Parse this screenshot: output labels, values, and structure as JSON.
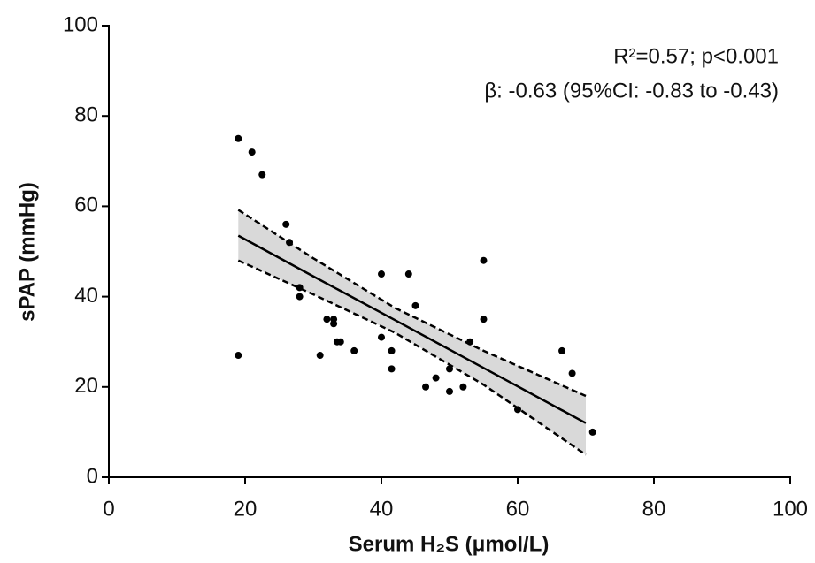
{
  "chart_data": {
    "type": "scatter",
    "x_label": "Serum H₂S (μmol/L)",
    "y_label": "sPAP (mmHg)",
    "annotations": [
      "R²=0.57; p<0.001",
      "β: -0.63 (95%CI: -0.83 to -0.43)"
    ],
    "xlim": [
      0,
      100
    ],
    "ylim": [
      0,
      100
    ],
    "xticks": [
      0,
      20,
      40,
      60,
      80,
      100
    ],
    "yticks": [
      0,
      20,
      40,
      60,
      80,
      100
    ],
    "points": {
      "color": "#000000",
      "x": [
        19,
        21,
        22.5,
        26,
        26.5,
        28,
        28,
        19,
        31,
        32,
        33,
        33,
        33.5,
        34,
        36,
        40,
        40,
        41.5,
        41.5,
        44,
        45,
        46.5,
        48,
        50,
        50,
        52,
        53,
        55,
        55,
        60,
        66.5,
        68,
        71
      ],
      "y": [
        75,
        72,
        67,
        56,
        52,
        42,
        40,
        27,
        27,
        35,
        35,
        34,
        30,
        30,
        28,
        45,
        31,
        28,
        24,
        45,
        38,
        20,
        22,
        24,
        19,
        20,
        30,
        48,
        35,
        15,
        28,
        23,
        10
      ]
    },
    "fit": {
      "color": "#000000",
      "band_color": "#d9d9d9",
      "x": [
        19,
        30,
        42,
        55,
        70
      ],
      "values": [
        53.5,
        44.5,
        34.8,
        24.2,
        12
      ],
      "upper": [
        59.2,
        48.5,
        37.5,
        28,
        18
      ],
      "lower": [
        48,
        40.5,
        32,
        20.5,
        5
      ]
    }
  }
}
